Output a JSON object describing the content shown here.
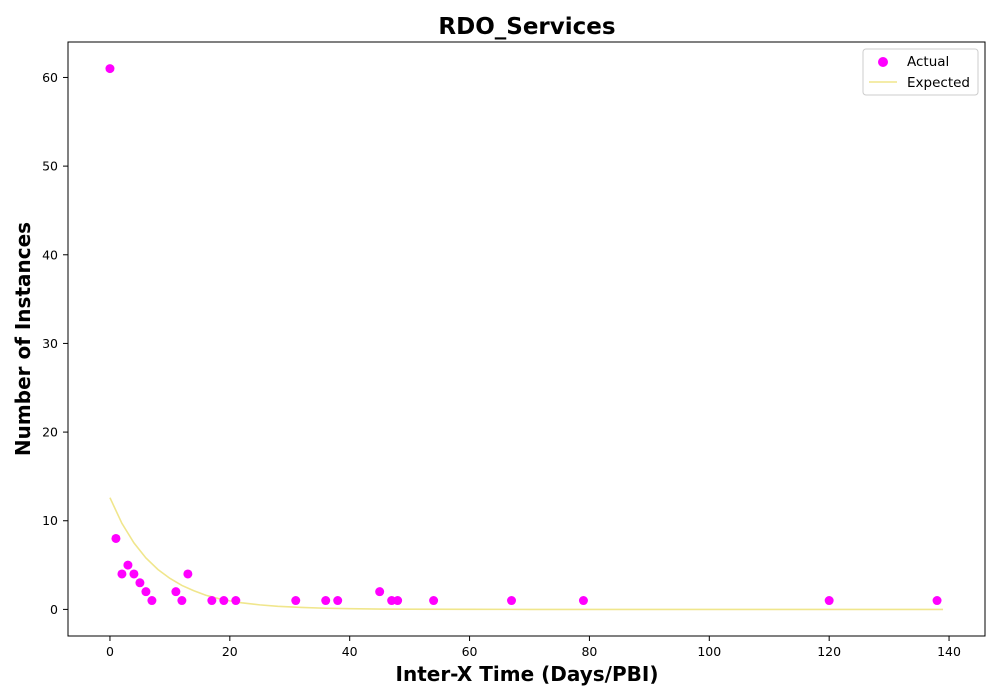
{
  "chart_data": {
    "type": "scatter",
    "title": "RDO_Services",
    "xlabel": "Inter-X Time (Days/PBI)",
    "ylabel": "Number of Instances",
    "xlim": [
      -7,
      146
    ],
    "ylim": [
      -3,
      64
    ],
    "xticks": [
      0,
      20,
      40,
      60,
      80,
      100,
      120,
      140
    ],
    "yticks": [
      0,
      10,
      20,
      30,
      40,
      50,
      60
    ],
    "grid": false,
    "legend_position": "top-right",
    "series": [
      {
        "name": "Actual",
        "kind": "scatter",
        "color": "#ff00ff",
        "x": [
          0,
          1,
          2,
          3,
          4,
          5,
          6,
          7,
          11,
          12,
          13,
          17,
          19,
          21,
          31,
          36,
          38,
          45,
          47,
          48,
          54,
          67,
          79,
          120,
          138
        ],
        "y": [
          61,
          8,
          4,
          5,
          4,
          3,
          2,
          1,
          2,
          1,
          4,
          1,
          1,
          1,
          1,
          1,
          1,
          2,
          1,
          1,
          1,
          1,
          1,
          1,
          1
        ]
      },
      {
        "name": "Expected",
        "kind": "line",
        "color": "#f0e68c",
        "x": [
          0,
          2,
          4,
          6,
          8,
          10,
          12,
          14,
          16,
          18,
          20,
          22,
          25,
          28,
          32,
          36,
          40,
          45,
          50,
          60,
          70,
          80,
          90,
          100,
          110,
          120,
          130,
          139
        ],
        "y": [
          12.6,
          9.7,
          7.5,
          5.8,
          4.5,
          3.5,
          2.7,
          2.1,
          1.6,
          1.24,
          0.96,
          0.74,
          0.51,
          0.35,
          0.22,
          0.13,
          0.08,
          0.04,
          0.02,
          0.01,
          0.0,
          0.0,
          0.0,
          0.0,
          0.0,
          0.0,
          0.0,
          0.0
        ]
      }
    ]
  }
}
